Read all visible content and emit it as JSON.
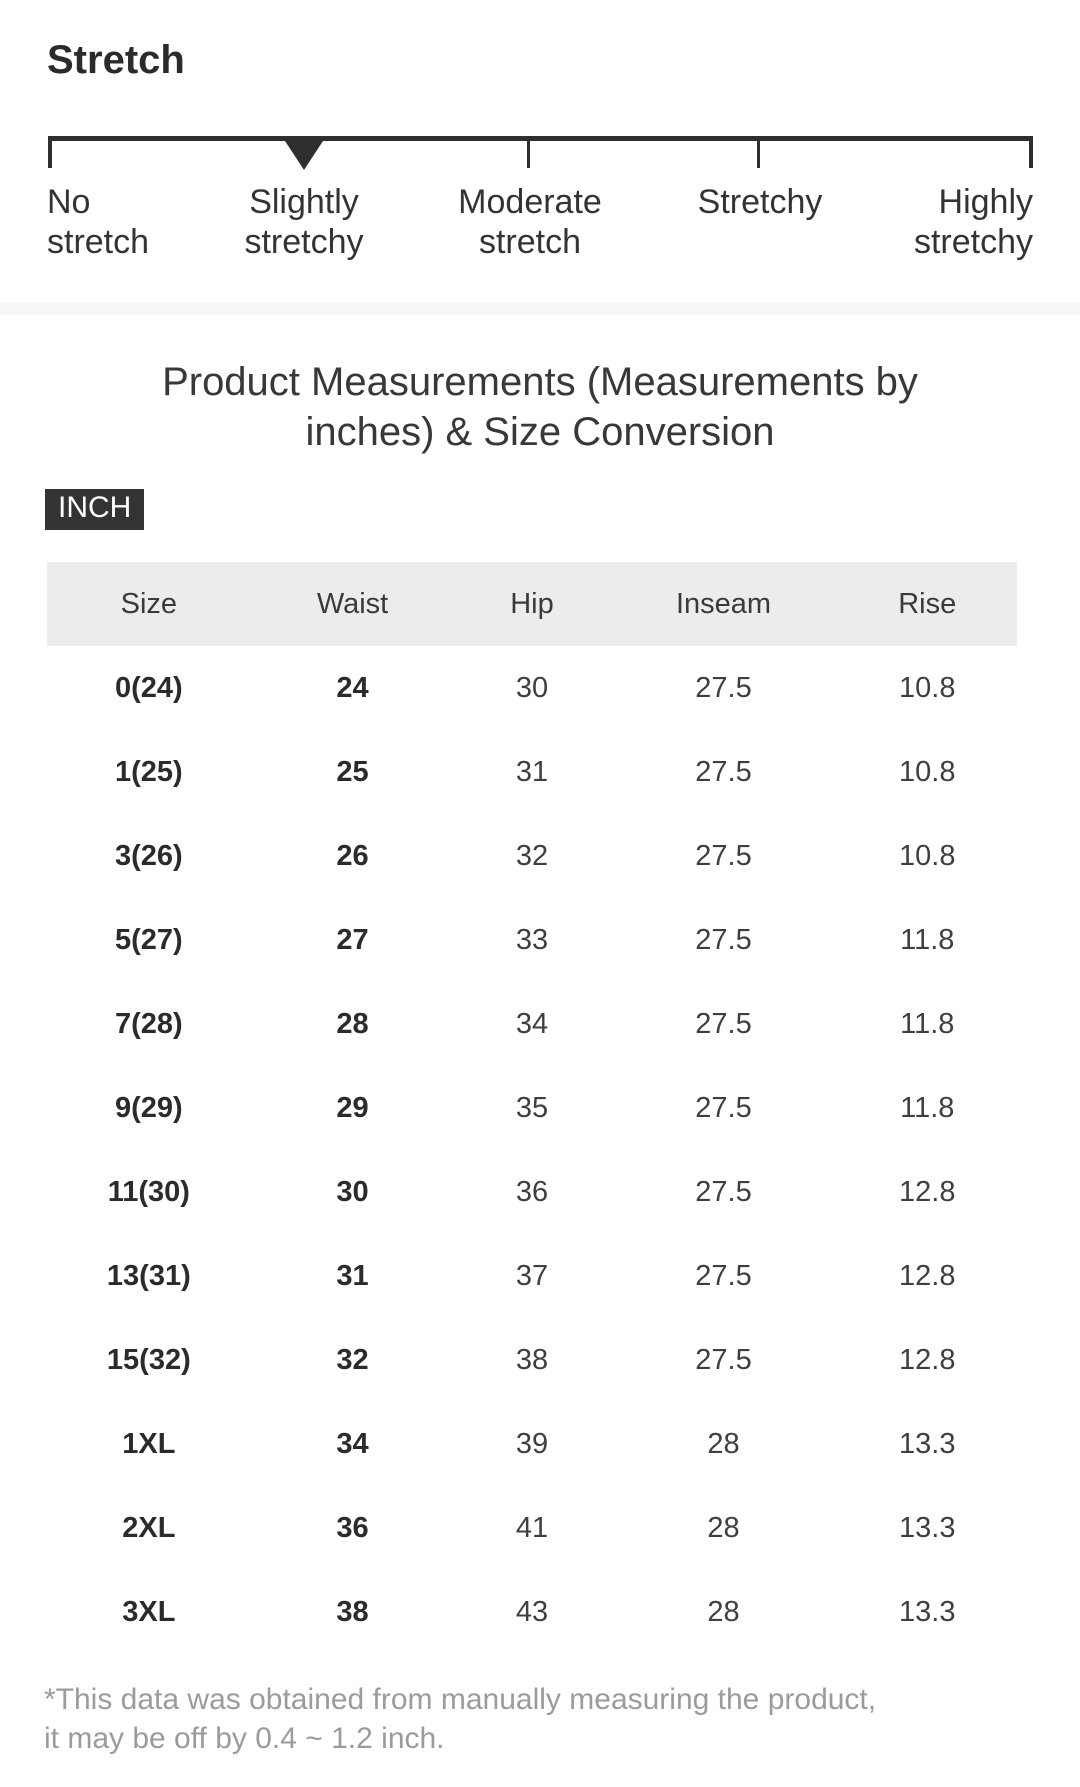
{
  "stretch": {
    "title": "Stretch",
    "selected_level": "Slightly stretchy",
    "levels": [
      "No\nstretch",
      "Slightly\nstretchy",
      "Moderate\nstretch",
      "Stretchy",
      "Highly\nstretchy"
    ]
  },
  "measurements": {
    "heading": "Product Measurements (Measurements by\ninches) & Size Conversion",
    "unit_label": "INCH",
    "columns": [
      "Size",
      "Waist",
      "Hip",
      "Inseam",
      "Rise"
    ],
    "rows": [
      [
        "0(24)",
        "24",
        "30",
        "27.5",
        "10.8"
      ],
      [
        "1(25)",
        "25",
        "31",
        "27.5",
        "10.8"
      ],
      [
        "3(26)",
        "26",
        "32",
        "27.5",
        "10.8"
      ],
      [
        "5(27)",
        "27",
        "33",
        "27.5",
        "11.8"
      ],
      [
        "7(28)",
        "28",
        "34",
        "27.5",
        "11.8"
      ],
      [
        "9(29)",
        "29",
        "35",
        "27.5",
        "11.8"
      ],
      [
        "11(30)",
        "30",
        "36",
        "27.5",
        "12.8"
      ],
      [
        "13(31)",
        "31",
        "37",
        "27.5",
        "12.8"
      ],
      [
        "15(32)",
        "32",
        "38",
        "27.5",
        "12.8"
      ],
      [
        "1XL",
        "34",
        "39",
        "28",
        "13.3"
      ],
      [
        "2XL",
        "36",
        "41",
        "28",
        "13.3"
      ],
      [
        "3XL",
        "38",
        "43",
        "28",
        "13.3"
      ]
    ],
    "disclaimer": "*This data was obtained from manually measuring the product,\n it may be off by 0.4 ~ 1.2 inch."
  },
  "colors": {
    "text_dark": "#2b2b2b",
    "scale_bar": "#2f2f2f",
    "badge_bg": "#333333",
    "table_header_bg": "#ececec",
    "divider_bg": "#f6f6f7",
    "disclaimer_text": "#9b9b9b"
  }
}
